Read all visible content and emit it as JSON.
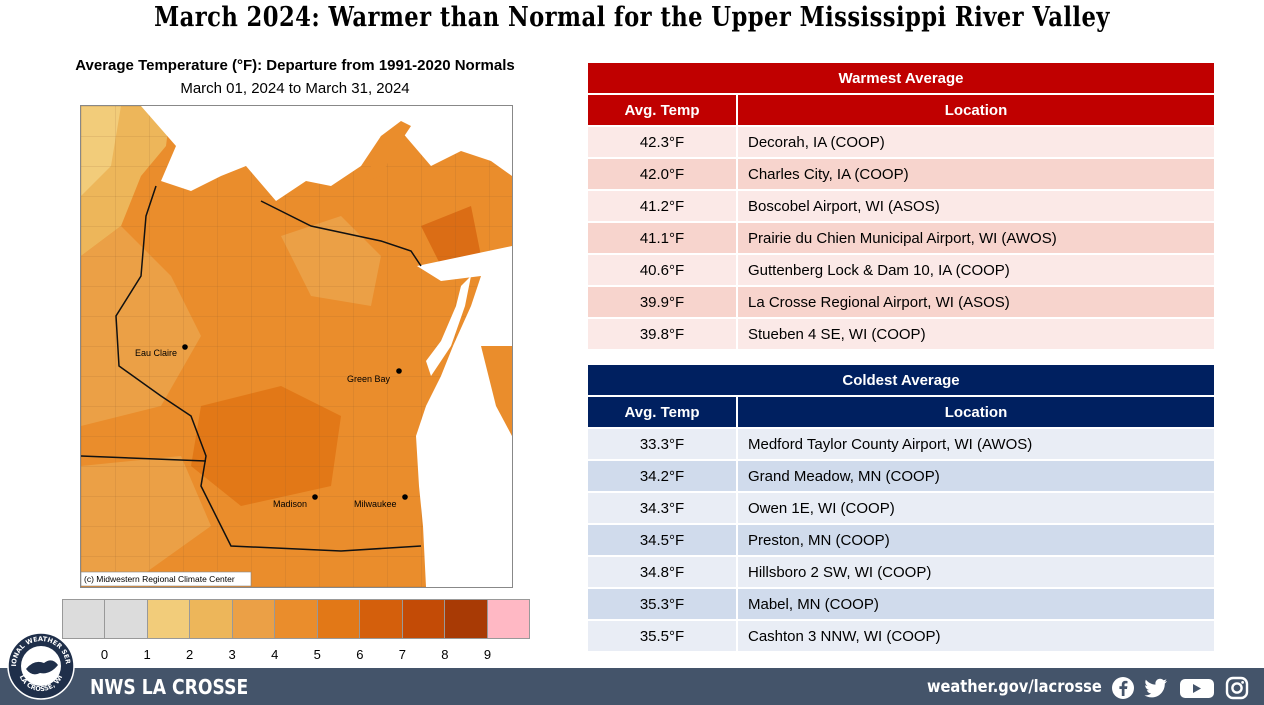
{
  "header": {
    "title": "March 2024:  Warmer than Normal for the Upper Mississippi River Valley"
  },
  "map": {
    "title": "Average Temperature (°F): Departure from 1991-2020 Normals",
    "subtitle": "March 01, 2024 to March 31, 2024",
    "credit": "(c) Midwestern Regional Climate Center",
    "cities": [
      {
        "name": "Eau Claire"
      },
      {
        "name": "Green Bay"
      },
      {
        "name": "Madison"
      },
      {
        "name": "Milwaukee"
      }
    ]
  },
  "legend": {
    "colors": [
      "#dcdcdc",
      "#dcdcdc",
      "#f2cc7a",
      "#edb65a",
      "#eba046",
      "#ea8d2c",
      "#e27817",
      "#d45f0c",
      "#c34b06",
      "#a83a05",
      "#ffb8c4"
    ],
    "ticks": [
      "0",
      "1",
      "2",
      "3",
      "4",
      "5",
      "6",
      "7",
      "8",
      "9"
    ]
  },
  "warmest": {
    "title": "Warmest  Average",
    "col_temp": "Avg. Temp",
    "col_location": "Location",
    "rows": [
      {
        "temp": "42.3°F",
        "location": "Decorah, IA (COOP)"
      },
      {
        "temp": "42.0°F",
        "location": "Charles City, IA (COOP)"
      },
      {
        "temp": "41.2°F",
        "location": "Boscobel Airport, WI (ASOS)"
      },
      {
        "temp": "41.1°F",
        "location": "Prairie du Chien Municipal Airport, WI (AWOS)"
      },
      {
        "temp": "40.6°F",
        "location": "Guttenberg Lock & Dam 10, IA (COOP)"
      },
      {
        "temp": "39.9°F",
        "location": "La Crosse Regional Airport, WI (ASOS)"
      },
      {
        "temp": "39.8°F",
        "location": "Stueben 4 SE, WI (COOP)"
      }
    ]
  },
  "coldest": {
    "title": "Coldest Average",
    "col_temp": "Avg. Temp",
    "col_location": "Location",
    "rows": [
      {
        "temp": "33.3°F",
        "location": "Medford Taylor County Airport, WI (AWOS)"
      },
      {
        "temp": "34.2°F",
        "location": "Grand Meadow, MN (COOP)"
      },
      {
        "temp": "34.3°F",
        "location": "Owen 1E, WI (COOP)"
      },
      {
        "temp": "34.5°F",
        "location": "Preston, MN (COOP)"
      },
      {
        "temp": "34.8°F",
        "location": "Hillsboro 2 SW, WI (COOP)"
      },
      {
        "temp": "35.3°F",
        "location": "Mabel, MN (COOP)"
      },
      {
        "temp": "35.5°F",
        "location": "Cashton 3 NNW, WI (COOP)"
      }
    ]
  },
  "footer": {
    "office": "NWS LA CROSSE",
    "url": "weather.gov/lacrosse",
    "logo_text_top": "NATIONAL WEATHER SERVICE",
    "logo_text_bottom": "LA CROSSE, WI",
    "social_icons": [
      "facebook-icon",
      "twitter-icon",
      "youtube-icon",
      "instagram-icon"
    ]
  }
}
